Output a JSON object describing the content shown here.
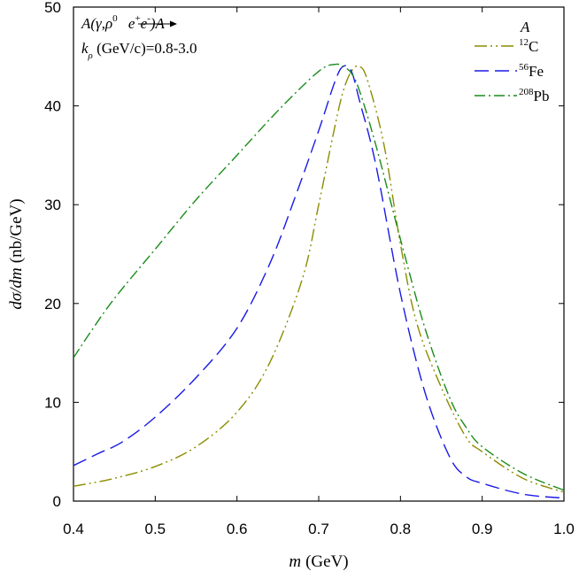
{
  "chart_data": {
    "type": "line",
    "title": "",
    "xlabel": {
      "var": "m",
      "unit": "(GeV)"
    },
    "ylabel": {
      "var": "dσ/dm",
      "unit": "(nb/GeV)"
    },
    "xlim": [
      0.4,
      1.0
    ],
    "ylim": [
      0,
      50
    ],
    "x_ticks": [
      0.4,
      0.5,
      0.6,
      0.7,
      0.8,
      0.9,
      1.0
    ],
    "x_tick_labels": [
      "0.4",
      "0.5",
      "0.6",
      "0.7",
      "0.8",
      "0.9",
      "1.0"
    ],
    "y_ticks": [
      0,
      10,
      20,
      30,
      40,
      50
    ],
    "y_tick_labels": [
      "0",
      "10",
      "20",
      "30",
      "40",
      "50"
    ],
    "grid": false,
    "annotation": {
      "reaction": {
        "a": "A(",
        "b": "γ,ρ",
        "c": "0",
        "d": " e",
        "e": "+",
        "f": "e",
        "g": "-",
        "h": ")A"
      },
      "momentum": {
        "k": "k",
        "rho": "ρ",
        "rest": " (GeV/c)=0.8-3.0"
      }
    },
    "legend": {
      "title": "A",
      "position": "top-right"
    },
    "series": [
      {
        "name": "12C",
        "label_sup": "12",
        "label_main": "C",
        "color": "#8c8c00",
        "dash": "14 4 2 4 2 4",
        "x": [
          0.4,
          0.42,
          0.45,
          0.5,
          0.55,
          0.6,
          0.64,
          0.68,
          0.7,
          0.72,
          0.73,
          0.74,
          0.75,
          0.76,
          0.78,
          0.8,
          0.82,
          0.85,
          0.88,
          0.9,
          0.95,
          1.0
        ],
        "values": [
          1.5,
          1.8,
          2.3,
          3.5,
          5.5,
          9.0,
          14.0,
          22.5,
          30.0,
          38.0,
          41.5,
          43.5,
          44.0,
          42.5,
          36.0,
          26.0,
          18.0,
          11.5,
          6.5,
          5.0,
          2.3,
          0.9
        ]
      },
      {
        "name": "56Fe",
        "label_sup": "56",
        "label_main": "Fe",
        "color": "#1a1ae6",
        "dash": "16 7",
        "x": [
          0.4,
          0.43,
          0.46,
          0.5,
          0.55,
          0.6,
          0.64,
          0.67,
          0.7,
          0.72,
          0.73,
          0.74,
          0.75,
          0.77,
          0.8,
          0.83,
          0.86,
          0.88,
          0.9,
          0.95,
          1.0
        ],
        "values": [
          3.6,
          4.8,
          6.0,
          8.5,
          12.5,
          17.5,
          24.0,
          30.5,
          37.5,
          42.5,
          44.0,
          43.5,
          40.5,
          34.0,
          21.0,
          11.0,
          4.5,
          2.5,
          1.8,
          0.7,
          0.3
        ]
      },
      {
        "name": "208Pb",
        "label_sup": "208",
        "label_main": "Pb",
        "color": "#1a8c1a",
        "dash": "12 4 2 4",
        "x": [
          0.4,
          0.42,
          0.45,
          0.5,
          0.55,
          0.6,
          0.65,
          0.7,
          0.72,
          0.73,
          0.74,
          0.75,
          0.77,
          0.8,
          0.83,
          0.86,
          0.88,
          0.9,
          0.95,
          1.0
        ],
        "values": [
          14.5,
          17.0,
          20.5,
          25.5,
          30.5,
          35.0,
          39.5,
          43.5,
          44.2,
          44.0,
          43.3,
          41.5,
          36.0,
          26.5,
          17.5,
          10.5,
          7.5,
          5.5,
          2.8,
          1.1
        ]
      }
    ]
  }
}
